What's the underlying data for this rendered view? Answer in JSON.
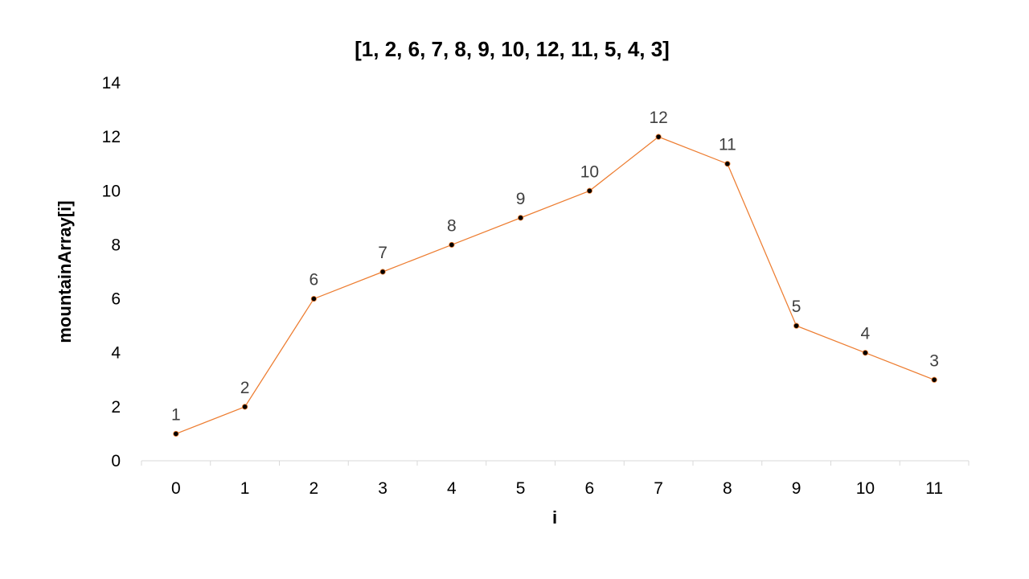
{
  "chart_data": {
    "type": "line",
    "title": "[1, 2, 6, 7, 8, 9, 10, 12, 11, 5, 4, 3]",
    "xlabel": "i",
    "ylabel": "mountainArray[i]",
    "categories": [
      "0",
      "1",
      "2",
      "3",
      "4",
      "5",
      "6",
      "7",
      "8",
      "9",
      "10",
      "11"
    ],
    "series": [
      {
        "values": [
          1,
          2,
          6,
          7,
          8,
          9,
          10,
          12,
          11,
          5,
          4,
          3
        ]
      }
    ],
    "ylim": [
      0,
      14
    ],
    "yticks": [
      0,
      2,
      4,
      6,
      8,
      10,
      12,
      14
    ],
    "grid": false,
    "legend": "none",
    "line_color": "#ED7D31",
    "marker_color": "#000000",
    "axis_color": "#D9D9D9",
    "data_labels": true
  }
}
